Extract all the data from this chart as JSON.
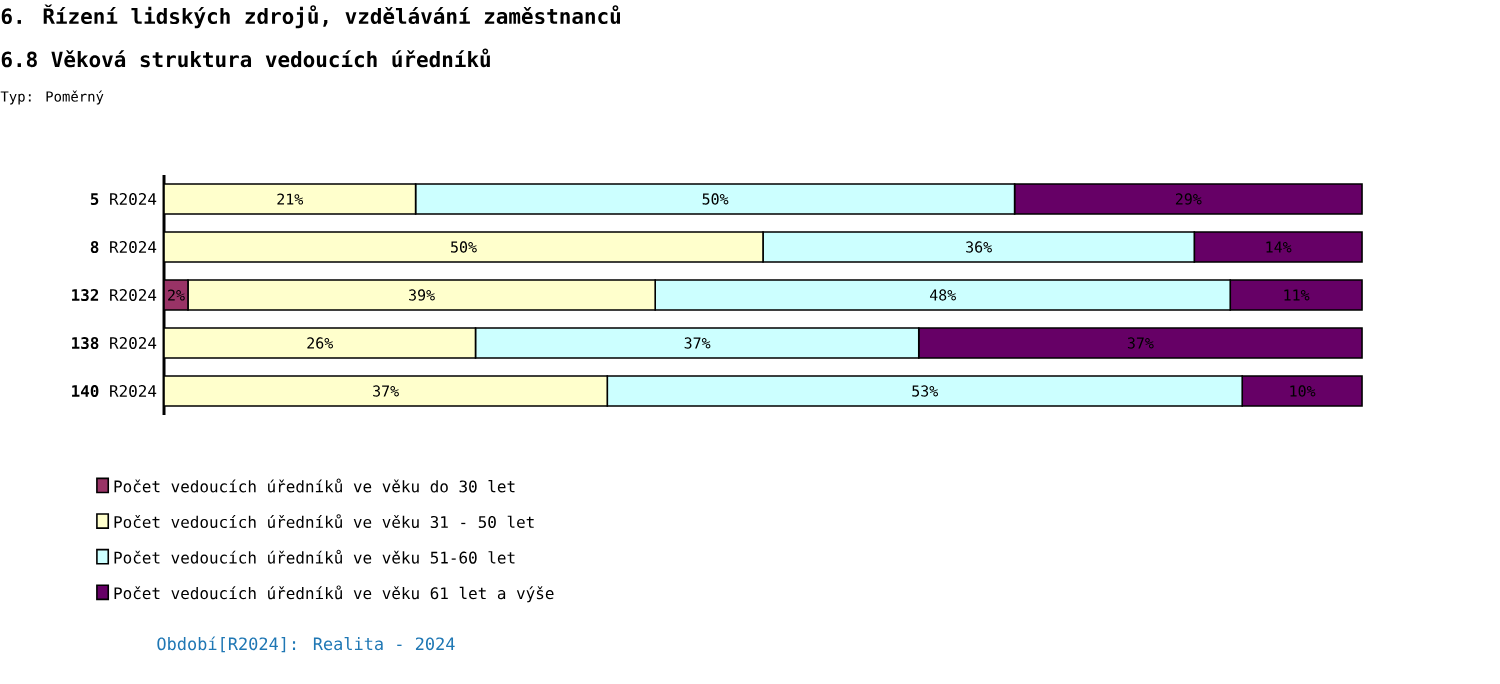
{
  "chart_data": {
    "type": "bar",
    "orientation": "horizontal",
    "stacked": true,
    "title": "6. Řízení lidských zdrojů, vzdělávání zaměstnanců",
    "subtitle": "6.8 Věková struktura vedoucích úředníků",
    "annotations": [
      "Typ: Poměrný",
      "Období[R2024]: Realita - 2024"
    ],
    "categories": [
      "**5** R2024",
      "**8** R2024",
      "**132** R2024",
      "**138** R2024",
      "**140** R2024"
    ],
    "xlim": [
      0,
      100
    ],
    "tick_labels": "y",
    "legend": "bottom left",
    "series": [
      {
        "name": "Počet vedoucích úředníků ve věku do 30 let",
        "color": "#993366",
        "values": [
          0,
          0,
          2,
          0,
          0
        ],
        "value_labels": [
          null,
          null,
          "2%",
          null,
          null
        ]
      },
      {
        "name": "Počet vedoucích úředníků ve věku 31 - 50 let",
        "color": "#ffffcc",
        "values": [
          21,
          50,
          39,
          26,
          37
        ],
        "value_labels": [
          "21%",
          "50%",
          "39%",
          "26%",
          "37%"
        ]
      },
      {
        "name": "Počet vedoucích úředníků ve věku 51-60 let",
        "color": "#ccffff",
        "values": [
          50,
          36,
          48,
          37,
          53
        ],
        "value_labels": [
          "50%",
          "36%",
          "48%",
          "37%",
          "53%"
        ]
      },
      {
        "name": "Počet vedoucích úředníků ve věku 61 let a výše",
        "color": "#660066",
        "values": [
          29,
          14,
          11,
          37,
          10
        ],
        "value_labels": [
          "29%",
          "14%",
          "11%",
          "37%",
          "10%"
        ]
      }
    ]
  }
}
